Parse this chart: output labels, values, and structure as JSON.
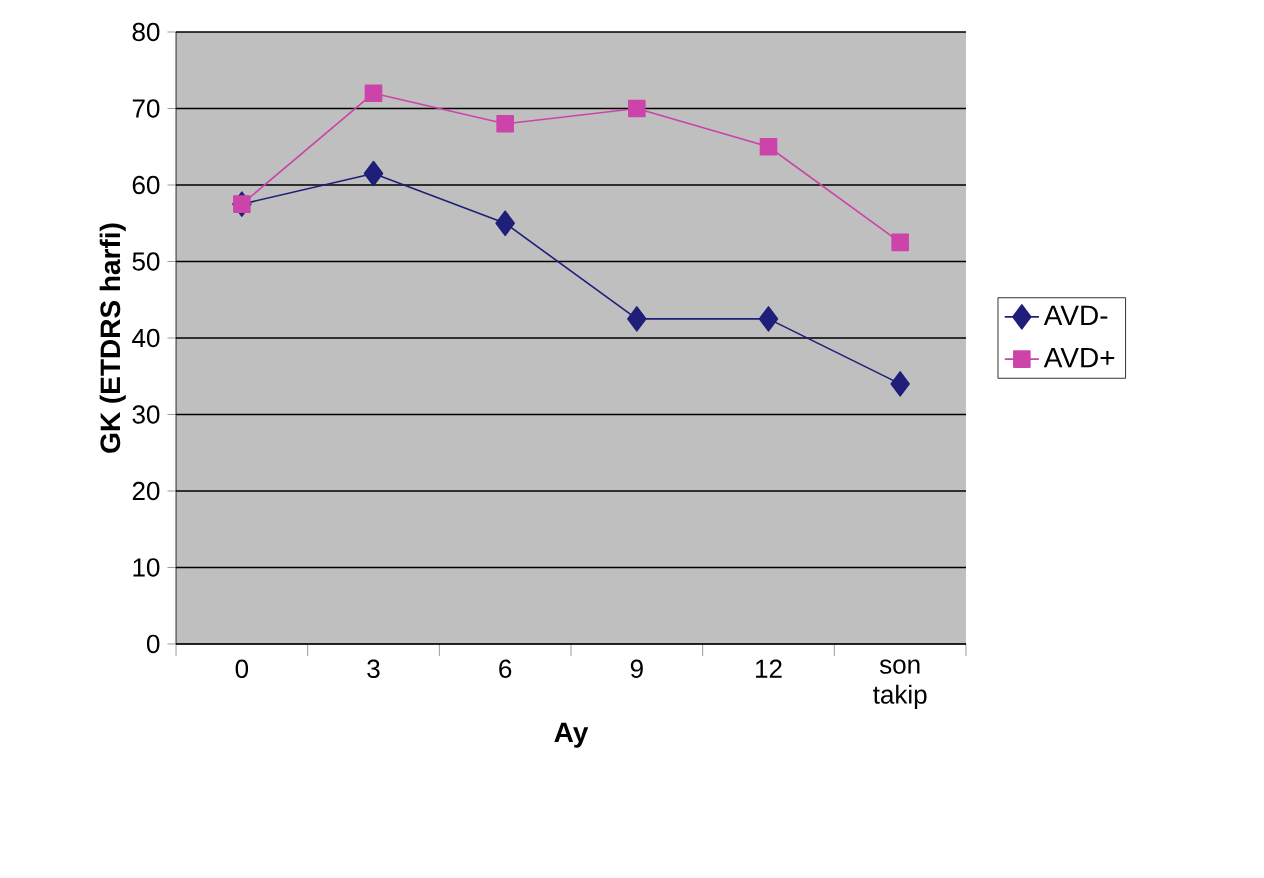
{
  "chart_data": {
    "type": "line",
    "xlabel": "Ay",
    "ylabel": "GK (ETDRS harfi)",
    "categories": [
      "0",
      "3",
      "6",
      "9",
      "12",
      "son takip"
    ],
    "ylim": [
      0,
      80
    ],
    "yticks": [
      0,
      10,
      20,
      30,
      40,
      50,
      60,
      70,
      80
    ],
    "grid": "y",
    "legend": "right",
    "series": [
      {
        "name": "AVD-",
        "color": "#1f1f7a",
        "marker": "diamond",
        "values": [
          57.5,
          61.5,
          55,
          42.5,
          42.5,
          34
        ]
      },
      {
        "name": "AVD+",
        "color": "#cc44aa",
        "marker": "square",
        "values": [
          57.5,
          72,
          68,
          70,
          65,
          52.5
        ]
      }
    ]
  }
}
